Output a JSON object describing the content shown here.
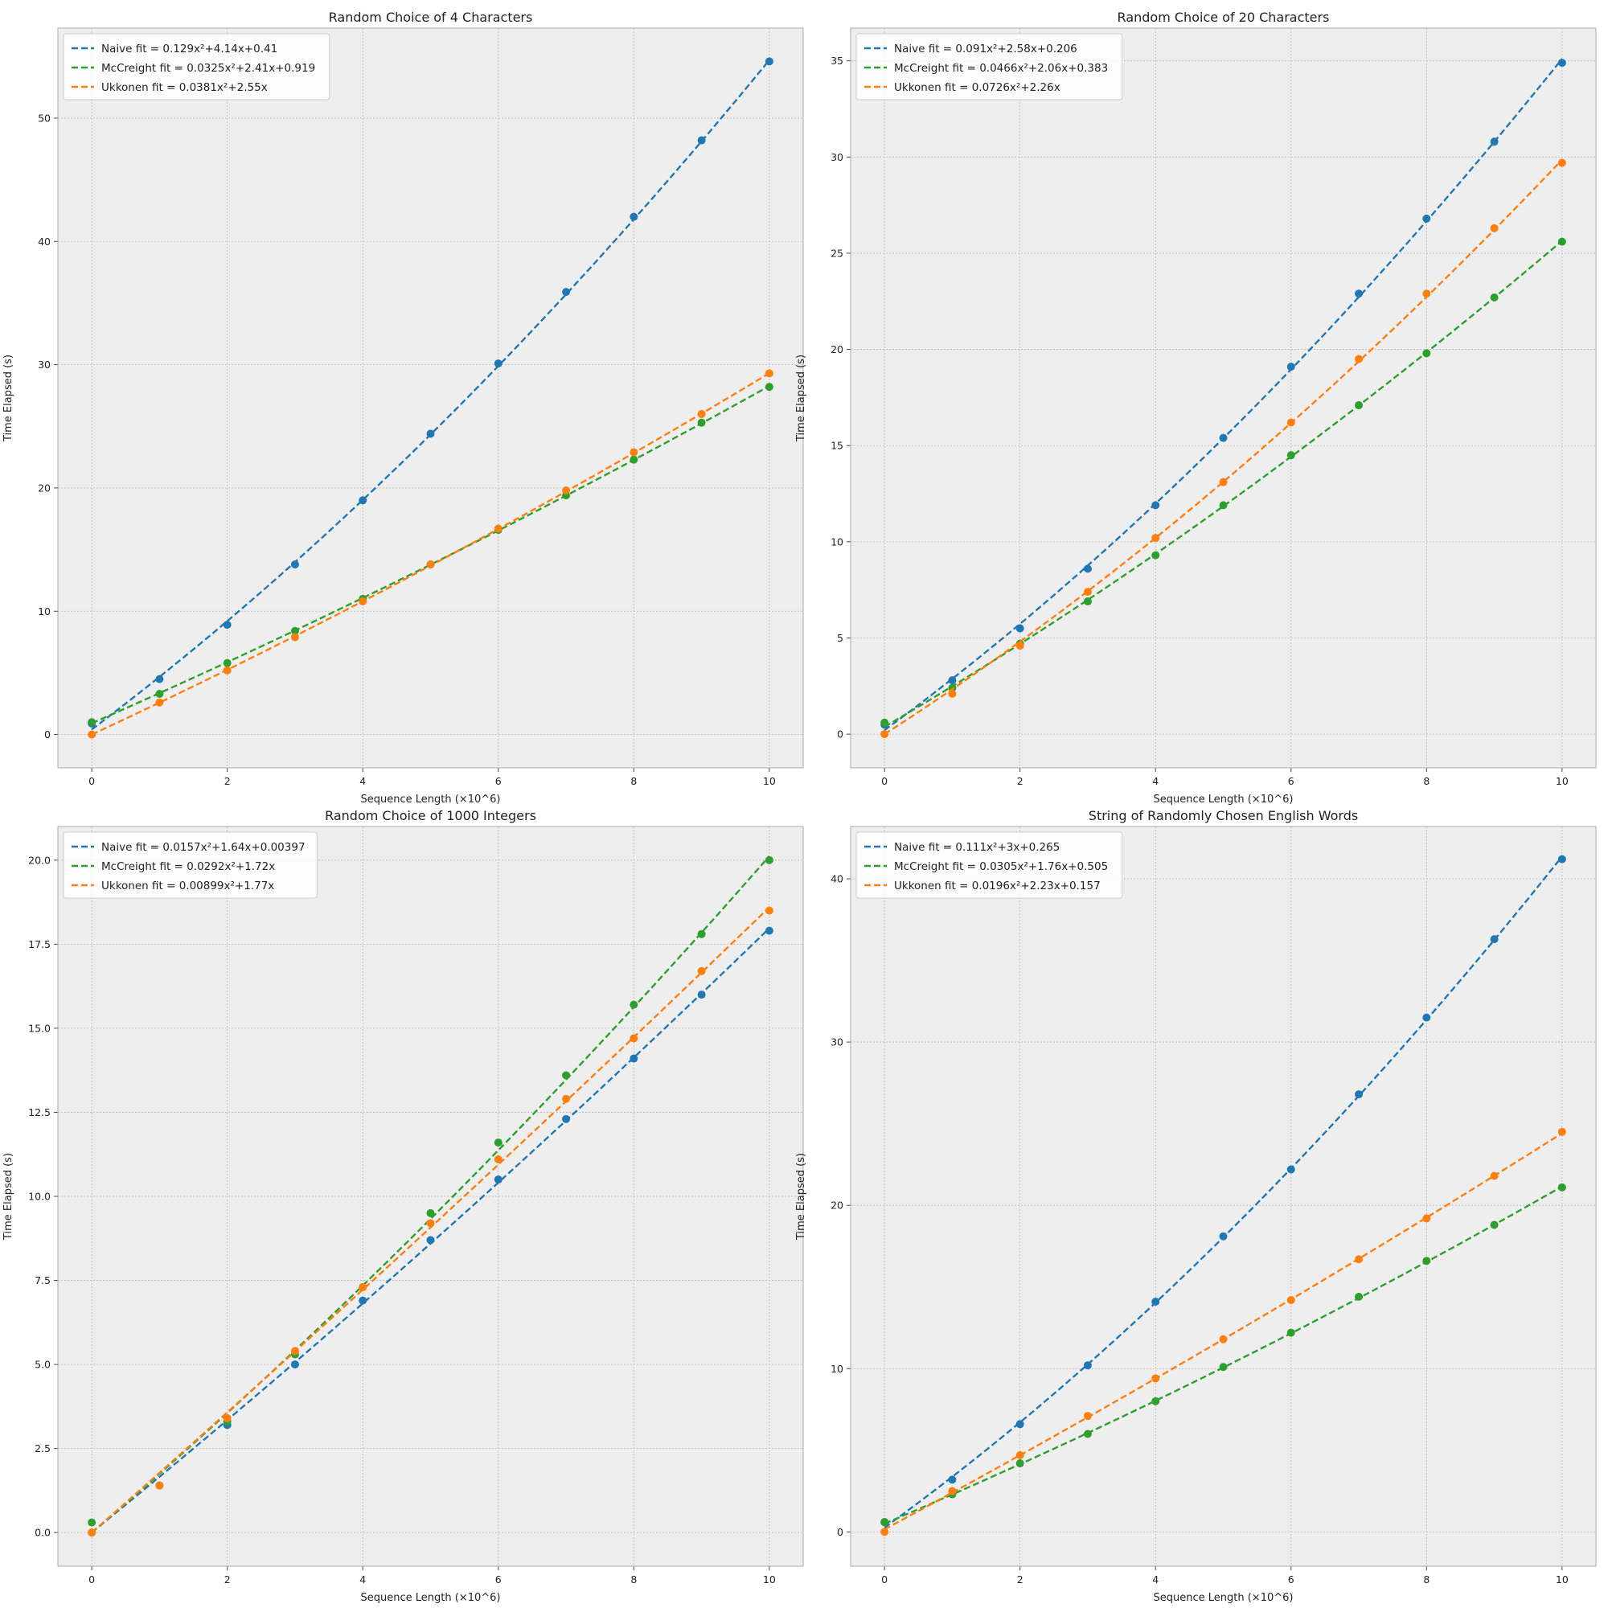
{
  "colors": {
    "naive": "#1f77b4",
    "mccreight": "#2ca02c",
    "ukkonen": "#ff7f0e",
    "panel_bg": "#eeeeee",
    "grid": "#b8b8b8"
  },
  "chart_data": [
    {
      "type": "line",
      "title": "Random Choice of 4 Characters",
      "xlabel": "Sequence Length (×10^6)",
      "ylabel": "Time Elapsed (s)",
      "xlim": [
        -0.5,
        10.5
      ],
      "ylim": [
        -2.7,
        57.3
      ],
      "xticks": [
        0,
        2,
        4,
        6,
        8,
        10
      ],
      "yticks": [
        0,
        10,
        20,
        30,
        40,
        50
      ],
      "grid": true,
      "legend": "top-left",
      "x": [
        0,
        1,
        2,
        3,
        4,
        5,
        6,
        7,
        8,
        9,
        10
      ],
      "series": [
        {
          "key": "naive",
          "name": "Naive fit = 0.129x²+4.14x+0.41",
          "fit": [
            0.129,
            4.14,
            0.41
          ],
          "values": [
            0.9,
            4.5,
            8.9,
            13.8,
            19.0,
            24.4,
            30.1,
            35.9,
            42.0,
            48.2,
            54.6
          ]
        },
        {
          "key": "mccreight",
          "name": "McCreight fit = 0.0325x²+2.41x+0.919",
          "fit": [
            0.0325,
            2.41,
            0.919
          ],
          "values": [
            1.0,
            3.3,
            5.8,
            8.4,
            11.0,
            13.8,
            16.6,
            19.4,
            22.3,
            25.3,
            28.2
          ]
        },
        {
          "key": "ukkonen",
          "name": "Ukkonen fit = 0.0381x²+2.55x",
          "fit": [
            0.0381,
            2.55,
            0
          ],
          "values": [
            0.0,
            2.6,
            5.2,
            7.9,
            10.8,
            13.8,
            16.7,
            19.8,
            22.9,
            26.0,
            29.3
          ]
        }
      ]
    },
    {
      "type": "line",
      "title": "Random Choice of 20 Characters",
      "xlabel": "Sequence Length (×10^6)",
      "ylabel": "Time Elapsed (s)",
      "xlim": [
        -0.5,
        10.5
      ],
      "ylim": [
        -1.75,
        36.7
      ],
      "xticks": [
        0,
        2,
        4,
        6,
        8,
        10
      ],
      "yticks": [
        0,
        5,
        10,
        15,
        20,
        25,
        30,
        35
      ],
      "grid": true,
      "legend": "top-left",
      "x": [
        0,
        1,
        2,
        3,
        4,
        5,
        6,
        7,
        8,
        9,
        10
      ],
      "series": [
        {
          "key": "naive",
          "name": "Naive fit = 0.091x²+2.58x+0.206",
          "fit": [
            0.091,
            2.58,
            0.206
          ],
          "values": [
            0.5,
            2.8,
            5.5,
            8.6,
            11.9,
            15.4,
            19.1,
            22.9,
            26.8,
            30.8,
            34.9
          ]
        },
        {
          "key": "mccreight",
          "name": "McCreight fit = 0.0466x²+2.06x+0.383",
          "fit": [
            0.0466,
            2.06,
            0.383
          ],
          "values": [
            0.6,
            2.4,
            4.7,
            6.9,
            9.3,
            11.9,
            14.5,
            17.1,
            19.8,
            22.7,
            25.6
          ]
        },
        {
          "key": "ukkonen",
          "name": "Ukkonen fit = 0.0726x²+2.26x",
          "fit": [
            0.0726,
            2.26,
            0
          ],
          "values": [
            0.0,
            2.1,
            4.6,
            7.4,
            10.2,
            13.1,
            16.2,
            19.5,
            22.9,
            26.3,
            29.7
          ]
        }
      ]
    },
    {
      "type": "line",
      "title": "Random Choice of 1000 Integers",
      "xlabel": "Sequence Length (×10^6)",
      "ylabel": "Time Elapsed (s)",
      "xlim": [
        -0.5,
        10.5
      ],
      "ylim": [
        -1.0,
        21.0
      ],
      "xticks": [
        0,
        2,
        4,
        6,
        8,
        10
      ],
      "yticks": [
        0.0,
        2.5,
        5.0,
        7.5,
        10.0,
        12.5,
        15.0,
        17.5,
        20.0
      ],
      "ytick_labels": [
        "0.0",
        "2.5",
        "5.0",
        "7.5",
        "10.0",
        "12.5",
        "15.0",
        "17.5",
        "20.0"
      ],
      "grid": true,
      "legend": "top-left",
      "x": [
        0,
        1,
        2,
        3,
        4,
        5,
        6,
        7,
        8,
        9,
        10
      ],
      "series": [
        {
          "key": "naive",
          "name": "Naive fit = 0.0157x²+1.64x+0.00397",
          "fit": [
            0.0157,
            1.64,
            0.00397
          ],
          "values": [
            0.0,
            1.4,
            3.2,
            5.0,
            6.9,
            8.7,
            10.5,
            12.3,
            14.1,
            16.0,
            17.9
          ]
        },
        {
          "key": "mccreight",
          "name": "McCreight fit = 0.0292x²+1.72x",
          "fit": [
            0.0292,
            1.72,
            0
          ],
          "values": [
            0.3,
            1.4,
            3.3,
            5.3,
            7.3,
            9.5,
            11.6,
            13.6,
            15.7,
            17.8,
            20.0
          ]
        },
        {
          "key": "ukkonen",
          "name": "Ukkonen fit = 0.00899x²+1.77x",
          "fit": [
            0.00899,
            1.77,
            0
          ],
          "values": [
            0.0,
            1.4,
            3.4,
            5.4,
            7.3,
            9.2,
            11.1,
            12.9,
            14.7,
            16.7,
            18.5
          ]
        }
      ]
    },
    {
      "type": "line",
      "title": "String of Randomly Chosen English Words",
      "xlabel": "Sequence Length (×10^6)",
      "ylabel": "Time Elapsed (s)",
      "xlim": [
        -0.5,
        10.5
      ],
      "ylim": [
        -2.1,
        43.2
      ],
      "xticks": [
        0,
        2,
        4,
        6,
        8,
        10
      ],
      "yticks": [
        0,
        10,
        20,
        30,
        40
      ],
      "grid": true,
      "legend": "top-left",
      "x": [
        0,
        1,
        2,
        3,
        4,
        5,
        6,
        7,
        8,
        9,
        10
      ],
      "series": [
        {
          "key": "naive",
          "name": "Naive fit = 0.111x²+3x+0.265",
          "fit": [
            0.111,
            3,
            0.265
          ],
          "values": [
            0.6,
            3.2,
            6.6,
            10.2,
            14.1,
            18.1,
            22.2,
            26.8,
            31.5,
            36.3,
            41.2
          ]
        },
        {
          "key": "mccreight",
          "name": "McCreight fit = 0.0305x²+1.76x+0.505",
          "fit": [
            0.0305,
            1.76,
            0.505
          ],
          "values": [
            0.6,
            2.3,
            4.2,
            6.0,
            8.0,
            10.1,
            12.2,
            14.4,
            16.6,
            18.8,
            21.1
          ]
        },
        {
          "key": "ukkonen",
          "name": "Ukkonen fit = 0.0196x²+2.23x+0.157",
          "fit": [
            0.0196,
            2.23,
            0.157
          ],
          "values": [
            0.0,
            2.5,
            4.7,
            7.1,
            9.4,
            11.8,
            14.2,
            16.7,
            19.2,
            21.8,
            24.5
          ]
        }
      ]
    }
  ]
}
